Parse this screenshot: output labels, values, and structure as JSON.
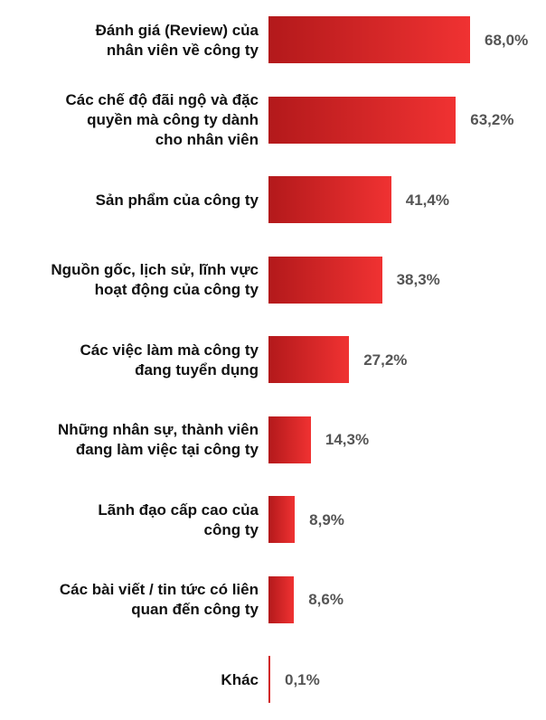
{
  "chart_data": {
    "type": "bar",
    "orientation": "horizontal",
    "categories": [
      "Đánh giá (Review) của\nnhân viên về công ty",
      "Các chế độ đãi ngộ và đặc\nquyền mà công ty dành\ncho nhân viên",
      "Sản phẩm của công ty",
      "Nguồn gốc, lịch sử, lĩnh vực\nhoạt động của công ty",
      "Các việc làm mà công ty\nđang tuyển dụng",
      "Những nhân sự, thành viên\nđang làm việc tại công ty",
      "Lãnh đạo cấp cao của\ncông ty",
      "Các bài viết / tin tức có liên\nquan đến công ty",
      "Khác"
    ],
    "values": [
      68.0,
      63.2,
      41.4,
      38.3,
      27.2,
      14.3,
      8.9,
      8.6,
      0.1
    ],
    "value_labels": [
      "68,0%",
      "63,2%",
      "41,4%",
      "38,3%",
      "27,2%",
      "14,3%",
      "8,9%",
      "8,6%",
      "0,1%"
    ],
    "color": [
      "#b3191b",
      "#f03232"
    ]
  }
}
